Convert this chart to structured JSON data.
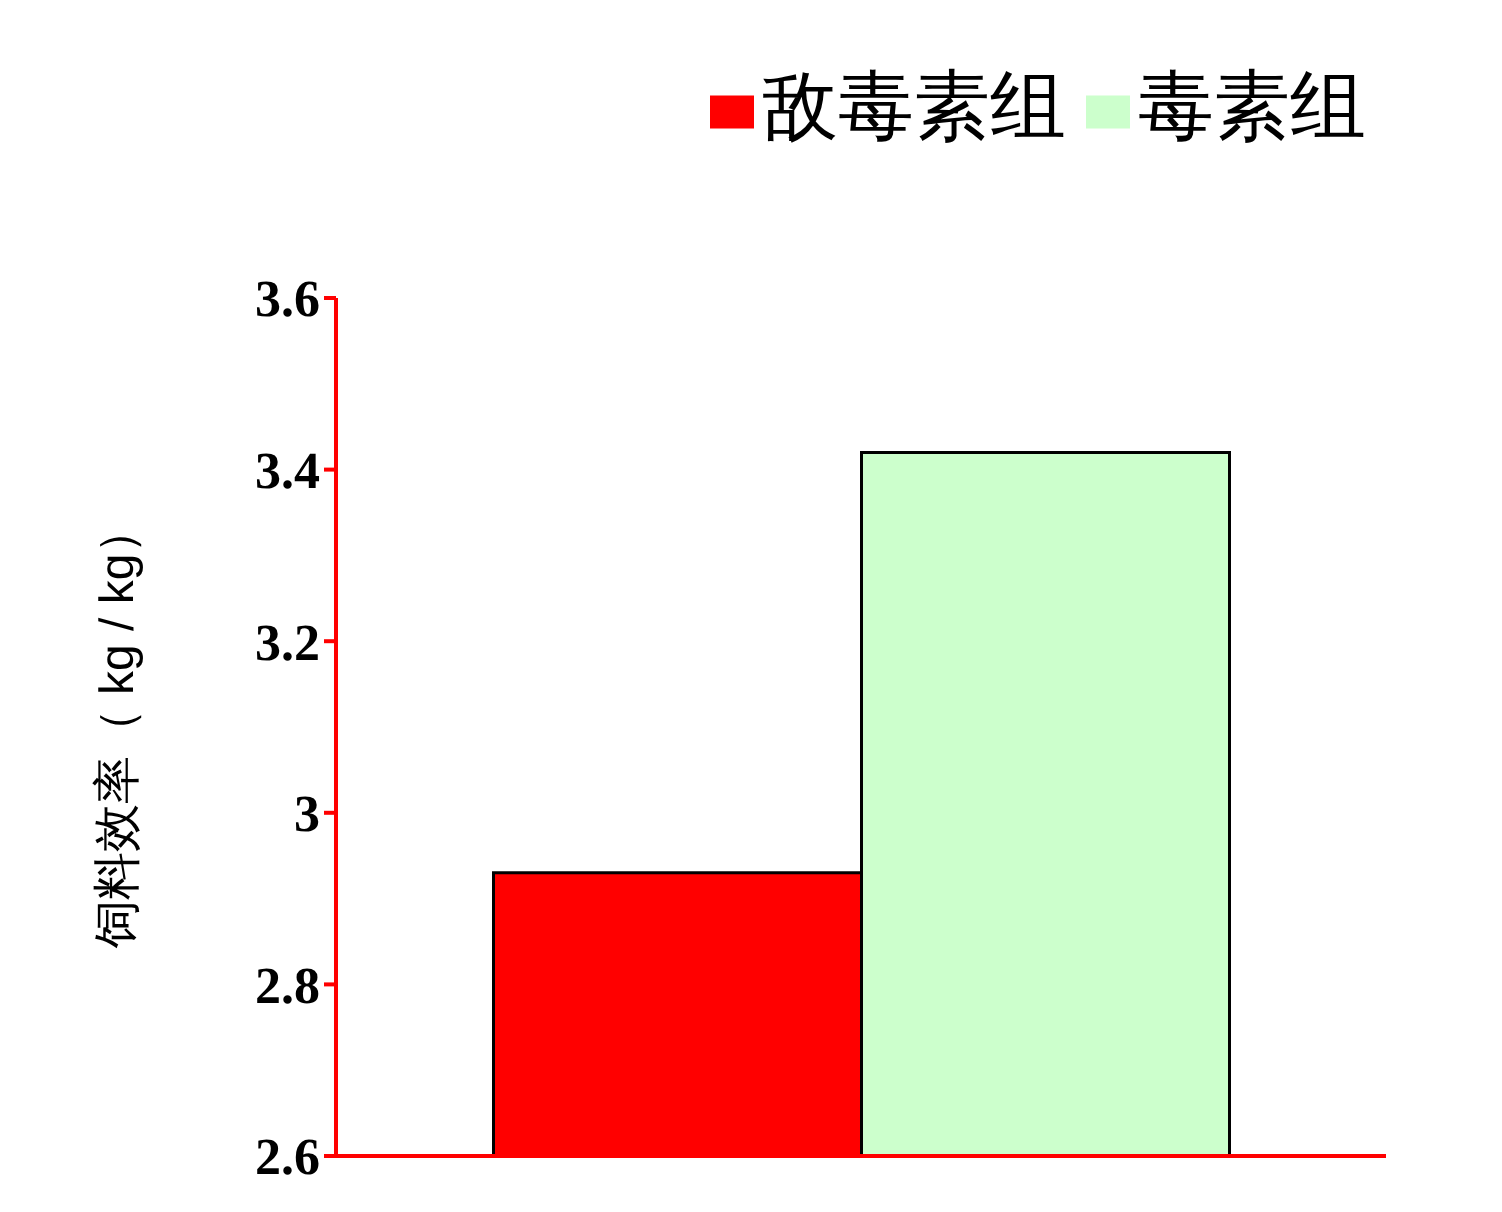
{
  "chart_data": {
    "type": "bar",
    "ylabel": "饲料效率（ kg / kg）",
    "categories": [
      null
    ],
    "series": [
      {
        "name": "敌毒素组",
        "color": "#ff0000",
        "values": [
          2.93
        ]
      },
      {
        "name": "毒素组",
        "color": "#ccffcc",
        "values": [
          3.42
        ]
      }
    ],
    "ylim": [
      2.6,
      3.6
    ],
    "yticks": [
      2.6,
      2.8,
      3,
      3.2,
      3.4,
      3.6
    ],
    "grid": false,
    "legend": "top right"
  }
}
